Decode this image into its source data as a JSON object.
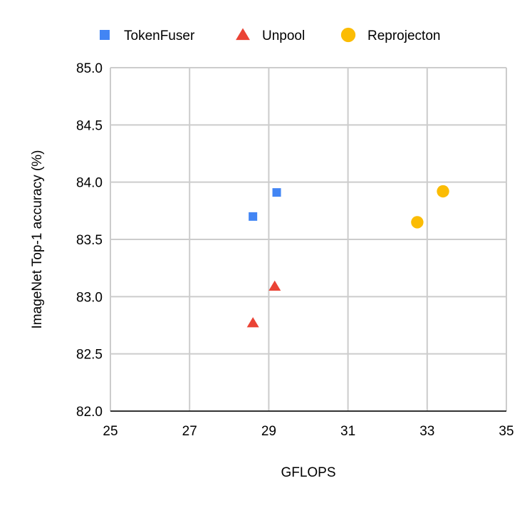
{
  "chart_data": {
    "type": "scatter",
    "title": "",
    "xlabel": "GFLOPS",
    "ylabel": "ImageNet Top-1 accuracy (%)",
    "xlim": [
      25,
      35
    ],
    "ylim": [
      82.0,
      85.0
    ],
    "xticks": [
      "25",
      "27",
      "29",
      "31",
      "33",
      "35"
    ],
    "yticks": [
      "82.0",
      "82.5",
      "83.0",
      "83.5",
      "84.0",
      "84.5",
      "85.0"
    ],
    "grid": true,
    "legend_position": "top",
    "series": [
      {
        "name": "TokenFuser",
        "marker": "square",
        "color": "#4285f4",
        "points": [
          {
            "x": 28.6,
            "y": 83.7
          },
          {
            "x": 29.2,
            "y": 83.91
          }
        ]
      },
      {
        "name": "Unpool",
        "marker": "triangle",
        "color": "#ea4335",
        "points": [
          {
            "x": 28.6,
            "y": 82.77
          },
          {
            "x": 29.15,
            "y": 83.09
          }
        ]
      },
      {
        "name": "Reprojecton",
        "marker": "circle",
        "color": "#fbbc04",
        "points": [
          {
            "x": 32.75,
            "y": 83.65
          },
          {
            "x": 33.4,
            "y": 83.92
          }
        ]
      }
    ]
  }
}
